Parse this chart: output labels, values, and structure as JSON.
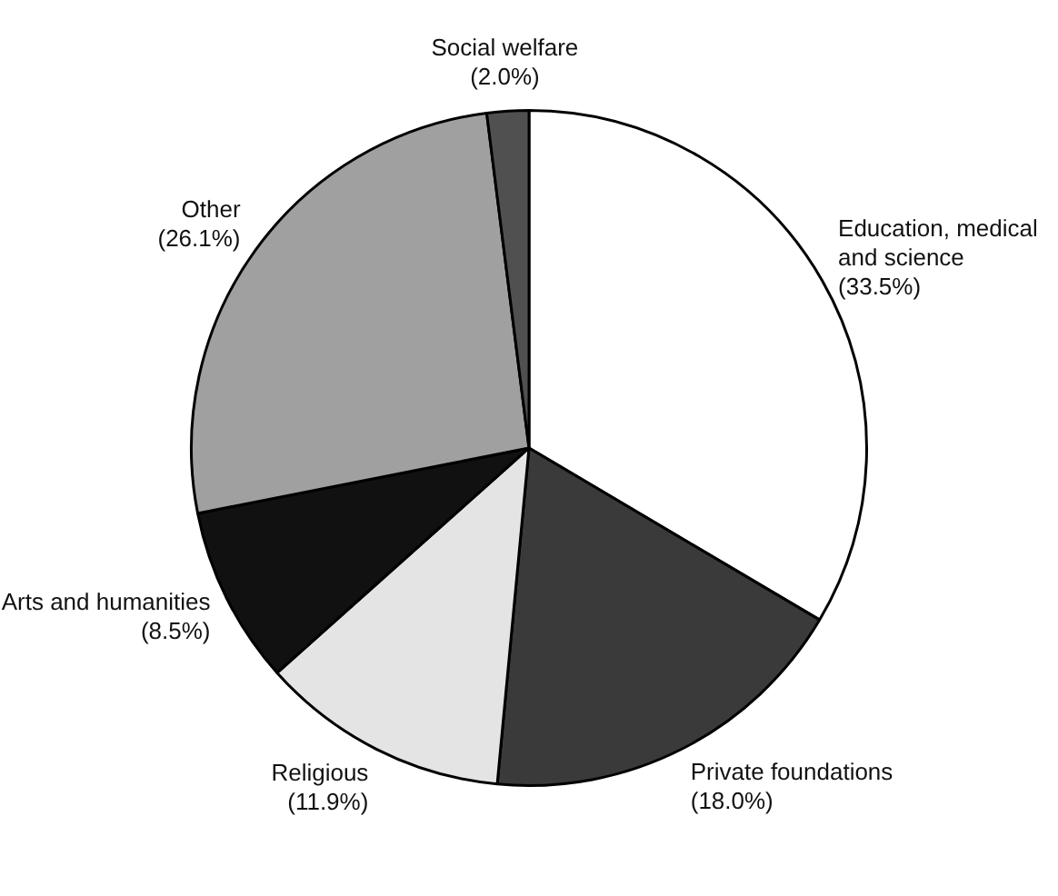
{
  "chart_data": {
    "type": "pie",
    "categories": [
      "Education, medical and science",
      "Private foundations",
      "Religious",
      "Arts and humanities",
      "Other",
      "Social welfare"
    ],
    "values": [
      33.5,
      18.0,
      11.9,
      8.5,
      26.1,
      2.0
    ],
    "value_labels": [
      "(33.5%)",
      "(18.0%)",
      "(11.9%)",
      "(8.5%)",
      "(26.1%)",
      "(2.0%)"
    ],
    "colors": [
      "#ffffff",
      "#3a3a3a",
      "#e4e4e4",
      "#111111",
      "#a0a0a0",
      "#505050"
    ],
    "legend": false
  }
}
